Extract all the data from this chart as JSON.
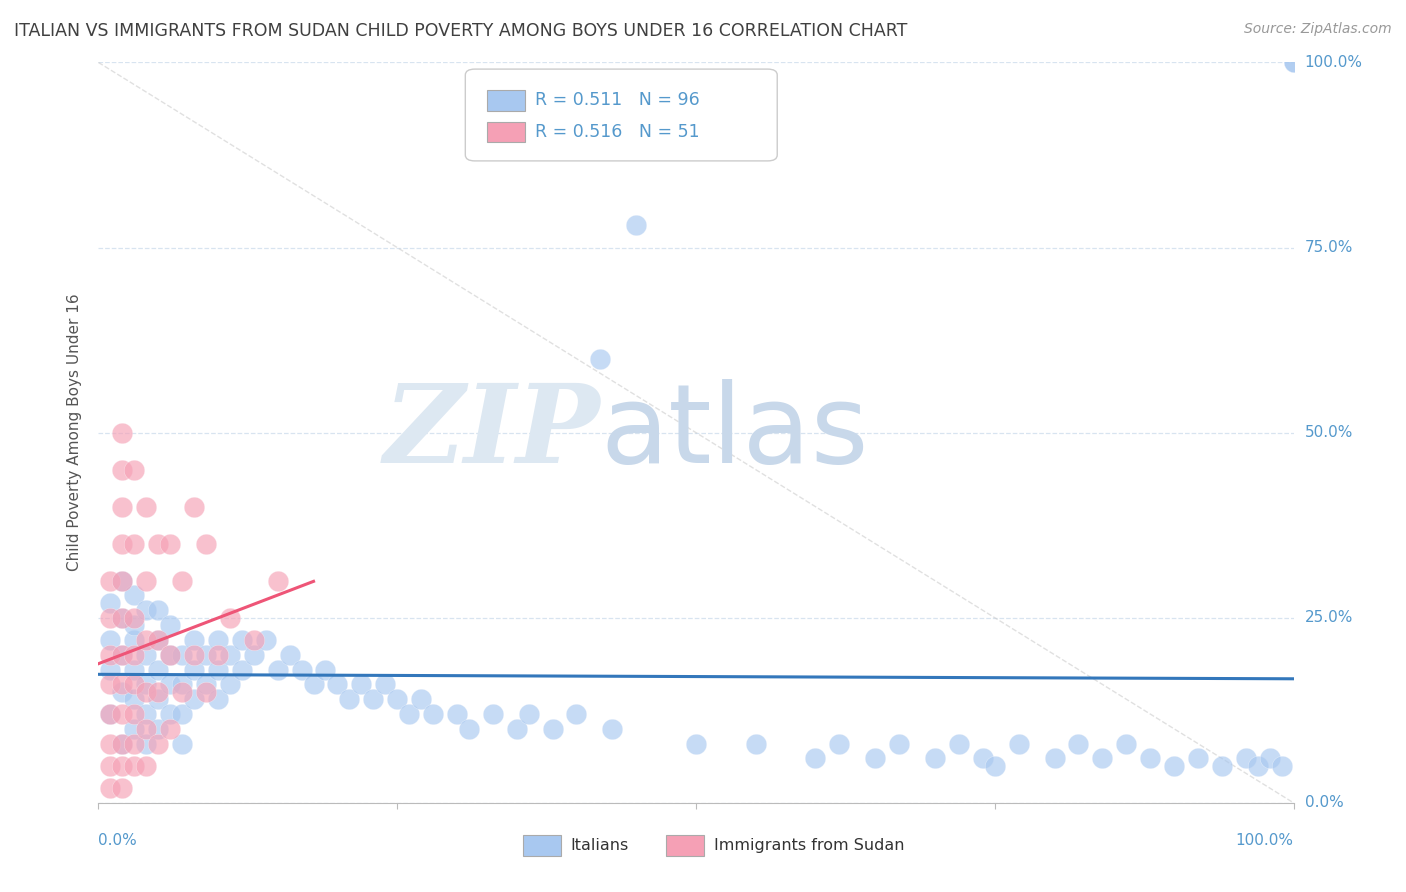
{
  "title": "ITALIAN VS IMMIGRANTS FROM SUDAN CHILD POVERTY AMONG BOYS UNDER 16 CORRELATION CHART",
  "source": "Source: ZipAtlas.com",
  "ylabel": "Child Poverty Among Boys Under 16",
  "ytick_labels": [
    "0.0%",
    "25.0%",
    "50.0%",
    "75.0%",
    "100.0%"
  ],
  "ytick_positions": [
    0,
    0.25,
    0.5,
    0.75,
    1.0
  ],
  "R_italian": 0.511,
  "N_italian": 96,
  "R_sudan": 0.516,
  "N_sudan": 51,
  "color_italian": "#a8c8f0",
  "color_sudan": "#f5a0b5",
  "color_italian_line": "#3377bb",
  "color_sudan_line": "#ee5577",
  "watermark_zip_color": "#dce9f5",
  "watermark_atlas_color": "#c5d8ee",
  "background_color": "#ffffff",
  "title_color": "#404040",
  "tick_label_color": "#5599cc",
  "grid_color": "#d8e4f0",
  "italian_x": [
    0.01,
    0.01,
    0.01,
    0.01,
    0.02,
    0.02,
    0.02,
    0.02,
    0.02,
    0.03,
    0.03,
    0.03,
    0.03,
    0.03,
    0.03,
    0.04,
    0.04,
    0.04,
    0.04,
    0.04,
    0.05,
    0.05,
    0.05,
    0.05,
    0.05,
    0.06,
    0.06,
    0.06,
    0.06,
    0.07,
    0.07,
    0.07,
    0.07,
    0.08,
    0.08,
    0.08,
    0.09,
    0.09,
    0.1,
    0.1,
    0.1,
    0.11,
    0.11,
    0.12,
    0.12,
    0.13,
    0.14,
    0.15,
    0.16,
    0.17,
    0.18,
    0.19,
    0.2,
    0.21,
    0.22,
    0.23,
    0.24,
    0.25,
    0.26,
    0.27,
    0.28,
    0.3,
    0.31,
    0.33,
    0.35,
    0.36,
    0.38,
    0.4,
    0.42,
    0.43,
    0.45,
    0.5,
    0.55,
    0.6,
    0.62,
    0.65,
    0.67,
    0.7,
    0.72,
    0.74,
    0.75,
    0.77,
    0.8,
    0.82,
    0.84,
    0.86,
    0.88,
    0.9,
    0.92,
    0.94,
    0.96,
    0.97,
    0.98,
    0.99,
    1.0,
    1.0
  ],
  "italian_y": [
    0.18,
    0.22,
    0.27,
    0.12,
    0.2,
    0.25,
    0.15,
    0.08,
    0.3,
    0.22,
    0.18,
    0.14,
    0.28,
    0.1,
    0.24,
    0.2,
    0.16,
    0.26,
    0.12,
    0.08,
    0.22,
    0.18,
    0.14,
    0.26,
    0.1,
    0.2,
    0.16,
    0.12,
    0.24,
    0.2,
    0.16,
    0.12,
    0.08,
    0.22,
    0.18,
    0.14,
    0.2,
    0.16,
    0.22,
    0.18,
    0.14,
    0.2,
    0.16,
    0.22,
    0.18,
    0.2,
    0.22,
    0.18,
    0.2,
    0.18,
    0.16,
    0.18,
    0.16,
    0.14,
    0.16,
    0.14,
    0.16,
    0.14,
    0.12,
    0.14,
    0.12,
    0.12,
    0.1,
    0.12,
    0.1,
    0.12,
    0.1,
    0.12,
    0.6,
    0.1,
    0.78,
    0.08,
    0.08,
    0.06,
    0.08,
    0.06,
    0.08,
    0.06,
    0.08,
    0.06,
    0.05,
    0.08,
    0.06,
    0.08,
    0.06,
    0.08,
    0.06,
    0.05,
    0.06,
    0.05,
    0.06,
    0.05,
    0.06,
    0.05,
    1.0,
    1.0
  ],
  "sudan_x": [
    0.01,
    0.01,
    0.01,
    0.01,
    0.01,
    0.01,
    0.01,
    0.01,
    0.02,
    0.02,
    0.02,
    0.02,
    0.02,
    0.02,
    0.02,
    0.02,
    0.02,
    0.02,
    0.02,
    0.02,
    0.03,
    0.03,
    0.03,
    0.03,
    0.03,
    0.03,
    0.03,
    0.03,
    0.04,
    0.04,
    0.04,
    0.04,
    0.04,
    0.04,
    0.05,
    0.05,
    0.05,
    0.05,
    0.06,
    0.06,
    0.06,
    0.07,
    0.07,
    0.08,
    0.08,
    0.09,
    0.09,
    0.1,
    0.11,
    0.13,
    0.15
  ],
  "sudan_y": [
    0.02,
    0.05,
    0.08,
    0.12,
    0.16,
    0.2,
    0.25,
    0.3,
    0.02,
    0.05,
    0.08,
    0.12,
    0.16,
    0.2,
    0.25,
    0.3,
    0.35,
    0.4,
    0.45,
    0.5,
    0.05,
    0.08,
    0.12,
    0.16,
    0.2,
    0.25,
    0.35,
    0.45,
    0.05,
    0.1,
    0.15,
    0.22,
    0.3,
    0.4,
    0.08,
    0.15,
    0.22,
    0.35,
    0.1,
    0.2,
    0.35,
    0.15,
    0.3,
    0.2,
    0.4,
    0.15,
    0.35,
    0.2,
    0.25,
    0.22,
    0.3
  ]
}
